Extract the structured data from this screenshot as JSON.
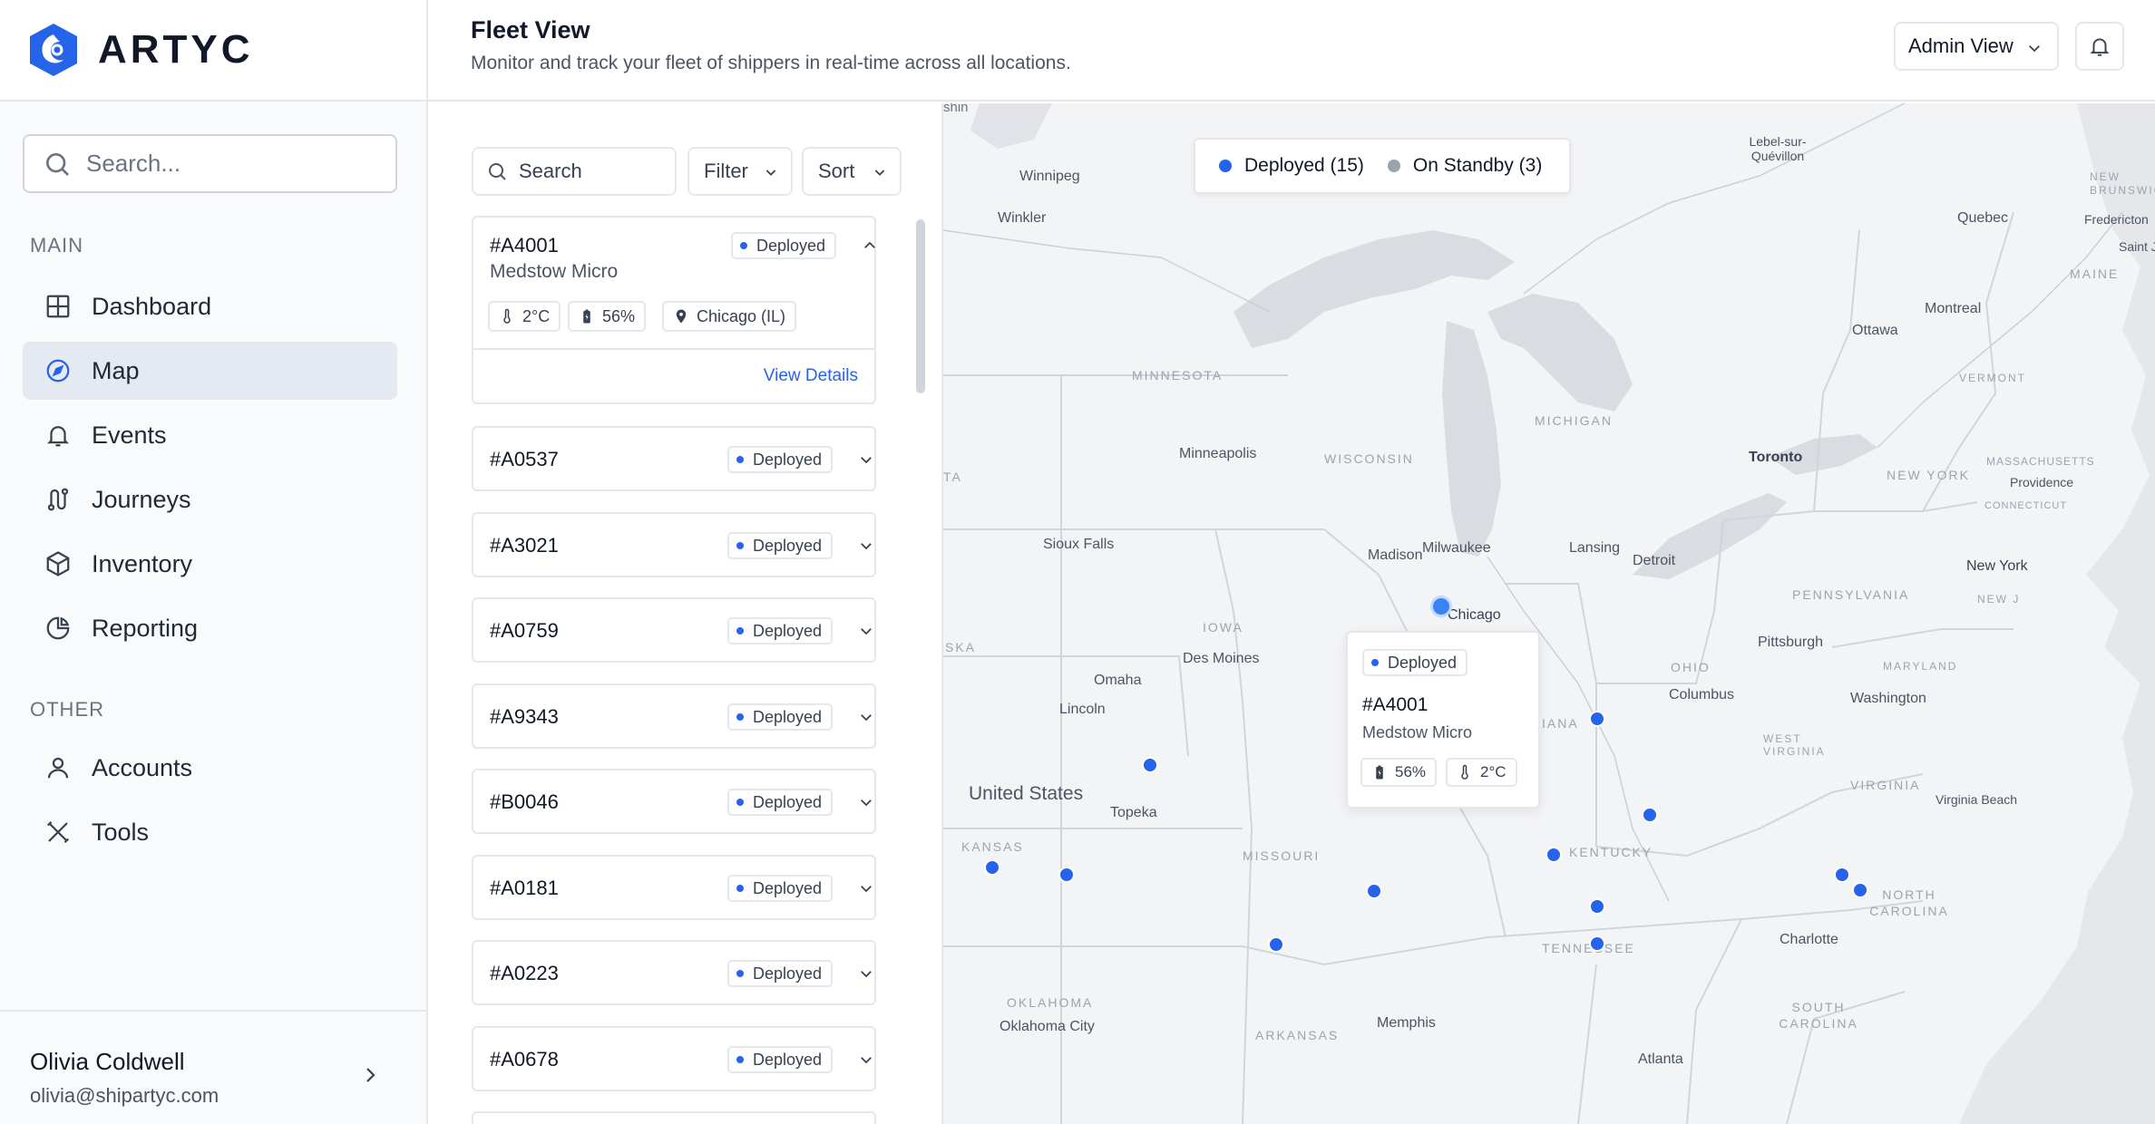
{
  "brand": {
    "name": "ARTYC",
    "accent": "#2563eb"
  },
  "sidebar": {
    "search_placeholder": "Search...",
    "main_label": "MAIN",
    "main_items": [
      {
        "label": "Dashboard",
        "icon": "grid-icon"
      },
      {
        "label": "Map",
        "icon": "compass-icon",
        "active": true
      },
      {
        "label": "Events",
        "icon": "bell-icon"
      },
      {
        "label": "Journeys",
        "icon": "route-icon"
      },
      {
        "label": "Inventory",
        "icon": "box-icon"
      },
      {
        "label": "Reporting",
        "icon": "pie-chart-icon"
      }
    ],
    "other_label": "OTHER",
    "other_items": [
      {
        "label": "Accounts",
        "icon": "user-icon"
      },
      {
        "label": "Tools",
        "icon": "tools-icon"
      }
    ],
    "user": {
      "name": "Olivia Coldwell",
      "email": "olivia@shipartyc.com"
    }
  },
  "header": {
    "title": "Fleet View",
    "subtitle": "Monitor and track your fleet of shippers in real-time across all locations.",
    "view_select": "Admin View"
  },
  "list": {
    "search_placeholder": "Search",
    "filter_label": "Filter",
    "sort_label": "Sort",
    "expanded": {
      "id": "#A4001",
      "status": "Deployed",
      "name": "Medstow Micro",
      "temperature": "2°C",
      "battery": "56%",
      "location": "Chicago (IL)",
      "view_details": "View Details"
    },
    "items": [
      {
        "id": "#A0537",
        "status": "Deployed"
      },
      {
        "id": "#A3021",
        "status": "Deployed"
      },
      {
        "id": "#A0759",
        "status": "Deployed"
      },
      {
        "id": "#A9343",
        "status": "Deployed"
      },
      {
        "id": "#B0046",
        "status": "Deployed"
      },
      {
        "id": "#A0181",
        "status": "Deployed"
      },
      {
        "id": "#A0223",
        "status": "Deployed"
      },
      {
        "id": "#A0678",
        "status": "Deployed"
      }
    ]
  },
  "map": {
    "legend": {
      "deployed": "Deployed (15)",
      "standby": "On Standby (3)",
      "deployed_color": "#2563eb",
      "standby_color": "#9ca3af"
    },
    "popup": {
      "status": "Deployed",
      "id": "#A4001",
      "name": "Medstow Micro",
      "battery": "56%",
      "temperature": "2°C"
    },
    "labels": {
      "winnipeg": "Winnipeg",
      "winkler": "Winkler",
      "lebel": "Lebel-sur-Quévillon",
      "new_brunswick": "NEW BRUNSWICK",
      "quebec": "Quebec",
      "fredericton": "Fredericton",
      "saint_j": "Saint J",
      "maine": "MAINE",
      "montreal": "Montreal",
      "ottawa": "Ottawa",
      "vermont": "VERMONT",
      "minnesota": "MINNESOTA",
      "minneapolis": "Minneapolis",
      "wisconsin": "WISCONSIN",
      "michigan": "MICHIGAN",
      "toronto": "Toronto",
      "new_york_state": "NEW YORK",
      "massachusetts": "MASSACHUSETTS",
      "providence": "Providence",
      "connecticut": "CONNECTICUT",
      "sioux_falls": "Sioux Falls",
      "madison": "Madison",
      "milwaukee": "Milwaukee",
      "lansing": "Lansing",
      "detroit": "Detroit",
      "new_york_city": "New York",
      "chicago": "Chicago",
      "iowa": "IOWA",
      "des_moines": "Des Moines",
      "pennsylvania": "PENNSYLVANIA",
      "new_j": "NEW J",
      "pittsburgh": "Pittsburgh",
      "omaha": "Omaha",
      "ohio": "OHIO",
      "maryland": "MARYLAND",
      "lincoln": "Lincoln",
      "iana": "IANA",
      "columbus": "Columbus",
      "washington": "Washington",
      "west_virginia": "WEST VIRGINIA",
      "united_states": "United States",
      "topeka": "Topeka",
      "virginia": "VIRGINIA",
      "virginia_beach": "Virginia Beach",
      "kansas": "KANSAS",
      "missouri": "MISSOURI",
      "kentucky": "KENTUCKY",
      "north_carolina": "NORTH CAROLINA",
      "tennessee": "TENNESSEE",
      "charlotte": "Charlotte",
      "oklahoma": "OKLAHOMA",
      "oklahoma_city": "Oklahoma City",
      "memphis": "Memphis",
      "arkansas": "ARKANSAS",
      "south_carolina": "SOUTH CAROLINA",
      "atlanta": "Atlanta",
      "ska": "SKA",
      "ta": "TA",
      "shin": "shin"
    }
  }
}
